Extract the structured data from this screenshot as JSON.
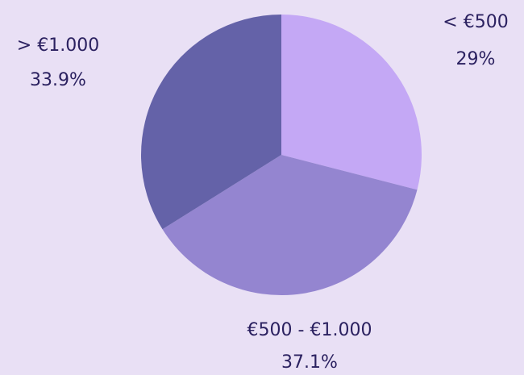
{
  "chart_data": {
    "type": "pie",
    "categories": [
      "< €500",
      "€500 - €1.000",
      "> €1.000"
    ],
    "values": [
      29,
      37.1,
      33.9
    ],
    "value_labels": [
      "29%",
      "37.1%",
      "33.9%"
    ],
    "colors": [
      "#c4a8f5",
      "#9485d0",
      "#6462a8"
    ]
  }
}
